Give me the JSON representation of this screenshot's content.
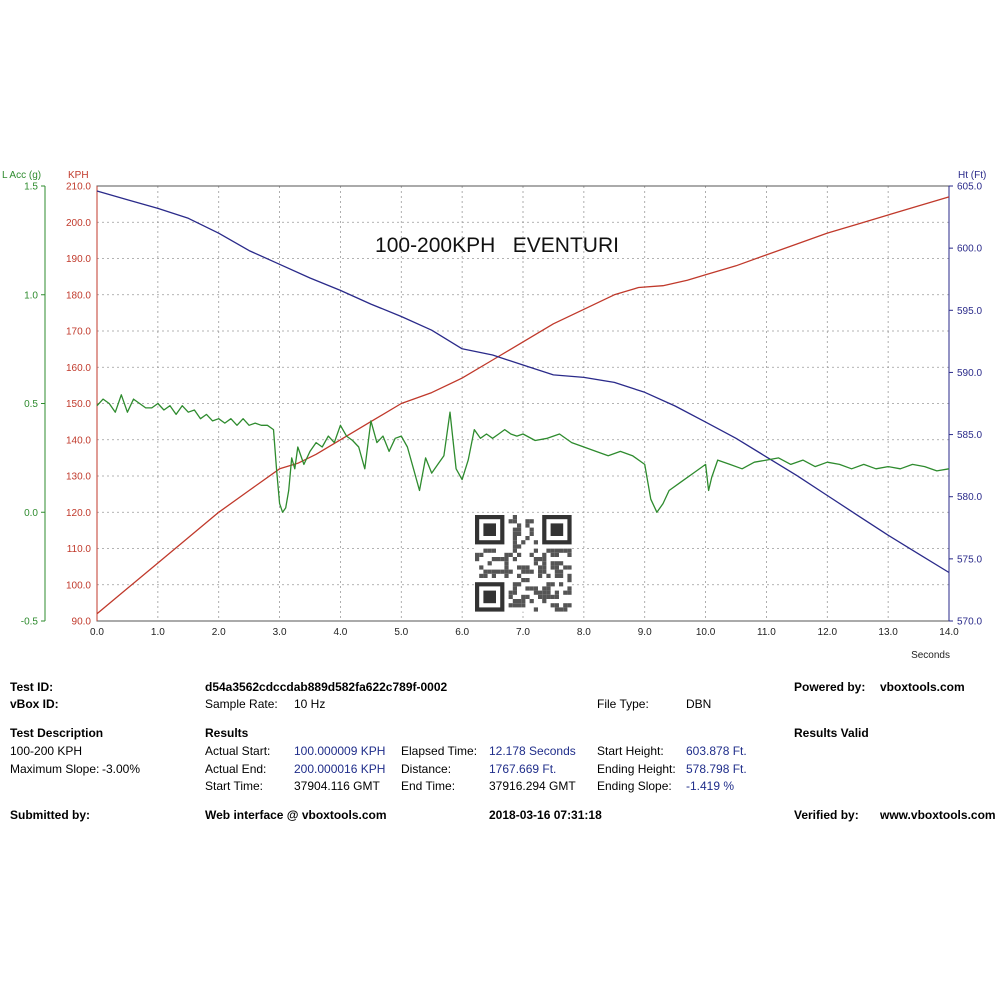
{
  "chart_data": {
    "type": "line",
    "title": "100-200KPH   EVENTURI",
    "xlabel": "Seconds",
    "xlim": [
      0,
      14
    ],
    "x_ticks": [
      "0.0",
      "1.0",
      "2.0",
      "3.0",
      "4.0",
      "5.0",
      "6.0",
      "7.0",
      "8.0",
      "9.0",
      "10.0",
      "11.0",
      "12.0",
      "13.0",
      "14.0"
    ],
    "grid": true,
    "axes": {
      "lacc": {
        "label": "L Acc (g)",
        "lim": [
          -0.5,
          1.5
        ],
        "ticks": [
          "1.5",
          "1.0",
          "0.5",
          "0.0",
          "-0.5"
        ],
        "color": "#2e8b2e"
      },
      "kph": {
        "label": "KPH",
        "lim": [
          90,
          210
        ],
        "ticks": [
          "210.0",
          "200.0",
          "190.0",
          "180.0",
          "170.0",
          "160.0",
          "150.0",
          "140.0",
          "130.0",
          "120.0",
          "110.0",
          "100.0",
          "90.0"
        ],
        "color": "#c0392b"
      },
      "ht": {
        "label": "Ht (Ft)",
        "lim": [
          570,
          605
        ],
        "ticks": [
          "605.0",
          "600.0",
          "595.0",
          "590.0",
          "585.0",
          "580.0",
          "575.0",
          "570.0"
        ],
        "color": "#2a2a8a"
      }
    },
    "series": [
      {
        "name": "KPH",
        "axis": "kph",
        "color": "#c0392b",
        "x": [
          0,
          0.5,
          1.0,
          1.5,
          2.0,
          2.5,
          3.0,
          3.3,
          3.6,
          4.0,
          4.5,
          5.0,
          5.5,
          6.0,
          6.5,
          7.0,
          7.5,
          8.0,
          8.5,
          8.9,
          9.3,
          9.7,
          10.0,
          10.5,
          11.0,
          11.5,
          12.0,
          12.5,
          13.0,
          13.5,
          14.0
        ],
        "values": [
          92,
          99,
          106,
          113,
          120,
          126,
          132,
          133.5,
          136,
          140,
          145,
          150,
          153,
          157,
          162,
          167,
          172,
          176,
          180,
          182,
          182.5,
          184,
          185.5,
          188,
          191,
          194,
          197,
          199.5,
          202,
          204.5,
          207
        ]
      },
      {
        "name": "Ht (Ft)",
        "axis": "ht",
        "color": "#2a2a8a",
        "x": [
          0,
          0.5,
          1.0,
          1.5,
          2.0,
          2.5,
          3.0,
          3.5,
          4.0,
          4.5,
          5.0,
          5.5,
          6.0,
          6.5,
          7.0,
          7.5,
          8.0,
          8.5,
          9.0,
          9.5,
          10.0,
          10.5,
          11.0,
          11.5,
          12.0,
          12.5,
          13.0,
          13.5,
          14.0
        ],
        "values": [
          604.6,
          603.9,
          603.2,
          602.4,
          601.2,
          599.8,
          598.7,
          597.6,
          596.6,
          595.5,
          594.5,
          593.4,
          591.9,
          591.4,
          590.6,
          589.8,
          589.6,
          589.2,
          588.4,
          587.3,
          586.0,
          584.7,
          583.2,
          581.7,
          580.1,
          578.5,
          576.9,
          575.4,
          573.9
        ]
      },
      {
        "name": "L Acc (g)",
        "axis": "lacc",
        "color": "#2e8b2e",
        "x": [
          0,
          0.1,
          0.2,
          0.3,
          0.4,
          0.5,
          0.6,
          0.7,
          0.8,
          0.9,
          1.0,
          1.1,
          1.2,
          1.3,
          1.4,
          1.5,
          1.6,
          1.7,
          1.8,
          1.9,
          2.0,
          2.1,
          2.2,
          2.3,
          2.4,
          2.5,
          2.6,
          2.7,
          2.8,
          2.9,
          2.95,
          3.0,
          3.05,
          3.1,
          3.15,
          3.2,
          3.25,
          3.3,
          3.4,
          3.5,
          3.6,
          3.7,
          3.8,
          3.9,
          4.0,
          4.1,
          4.2,
          4.3,
          4.4,
          4.5,
          4.6,
          4.7,
          4.8,
          4.9,
          5.0,
          5.1,
          5.2,
          5.3,
          5.4,
          5.5,
          5.6,
          5.7,
          5.8,
          5.9,
          6.0,
          6.1,
          6.2,
          6.3,
          6.4,
          6.5,
          6.6,
          6.7,
          6.8,
          6.9,
          7.0,
          7.2,
          7.4,
          7.6,
          7.8,
          8.0,
          8.2,
          8.4,
          8.6,
          8.8,
          9.0,
          9.1,
          9.2,
          9.3,
          9.4,
          9.6,
          9.8,
          10.0,
          10.05,
          10.1,
          10.2,
          10.4,
          10.6,
          10.8,
          11.0,
          11.2,
          11.4,
          11.6,
          11.8,
          12.0,
          12.2,
          12.4,
          12.6,
          12.8,
          13.0,
          13.2,
          13.4,
          13.6,
          13.8,
          14.0
        ],
        "values": [
          0.49,
          0.52,
          0.5,
          0.46,
          0.54,
          0.46,
          0.52,
          0.5,
          0.48,
          0.48,
          0.5,
          0.47,
          0.49,
          0.45,
          0.49,
          0.46,
          0.47,
          0.43,
          0.45,
          0.42,
          0.43,
          0.41,
          0.43,
          0.4,
          0.43,
          0.4,
          0.41,
          0.4,
          0.4,
          0.38,
          0.2,
          0.04,
          0.0,
          0.02,
          0.1,
          0.25,
          0.2,
          0.3,
          0.22,
          0.28,
          0.32,
          0.3,
          0.35,
          0.32,
          0.4,
          0.35,
          0.33,
          0.3,
          0.2,
          0.42,
          0.32,
          0.35,
          0.28,
          0.34,
          0.35,
          0.3,
          0.2,
          0.1,
          0.25,
          0.18,
          0.22,
          0.26,
          0.46,
          0.2,
          0.15,
          0.24,
          0.38,
          0.34,
          0.36,
          0.34,
          0.36,
          0.38,
          0.36,
          0.35,
          0.36,
          0.33,
          0.34,
          0.36,
          0.32,
          0.3,
          0.28,
          0.26,
          0.28,
          0.26,
          0.22,
          0.06,
          0.0,
          0.04,
          0.1,
          0.14,
          0.18,
          0.22,
          0.1,
          0.16,
          0.24,
          0.22,
          0.2,
          0.23,
          0.24,
          0.25,
          0.22,
          0.24,
          0.21,
          0.23,
          0.22,
          0.2,
          0.22,
          0.2,
          0.21,
          0.2,
          0.22,
          0.21,
          0.19,
          0.2
        ]
      }
    ]
  },
  "results": {
    "test_id_label": "Test ID:",
    "test_id_value": "d54a3562cdccdab889d582fa622c789f-0002",
    "vbox_id_label": "vBox ID:",
    "sample_rate_label": "Sample Rate:",
    "sample_rate_value": "10 Hz",
    "file_type_label": "File Type:",
    "file_type_value": "DBN",
    "powered_by_label": "Powered by:",
    "powered_by_value": "vboxtools.com",
    "test_description_label": "Test Description",
    "test_description_value": "100-200 KPH",
    "max_slope_label": "Maximum Slope:",
    "max_slope_value": "-3.00%",
    "results_label": "Results",
    "results_valid_label": "Results Valid",
    "actual_start_label": "Actual Start:",
    "actual_start_value": "100.000009 KPH",
    "actual_end_label": "Actual End:",
    "actual_end_value": "200.000016 KPH",
    "start_time_label": "Start Time:",
    "start_time_value": "37904.116 GMT",
    "elapsed_time_label": "Elapsed Time:",
    "elapsed_time_value": "12.178 Seconds",
    "distance_label": "Distance:",
    "distance_value": "1767.669 Ft.",
    "end_time_label": "End Time:",
    "end_time_value": "37916.294 GMT",
    "start_height_label": "Start Height:",
    "start_height_value": "603.878 Ft.",
    "ending_height_label": "Ending Height:",
    "ending_height_value": "578.798 Ft.",
    "ending_slope_label": "Ending Slope:",
    "ending_slope_value": "-1.419 %",
    "submitted_by_label": "Submitted by:",
    "web_interface_label": "Web interface @ vboxtools.com",
    "timestamp": "2018-03-16 07:31:18",
    "verified_by_label": "Verified by:",
    "verified_by_value": "www.vboxtools.com"
  }
}
